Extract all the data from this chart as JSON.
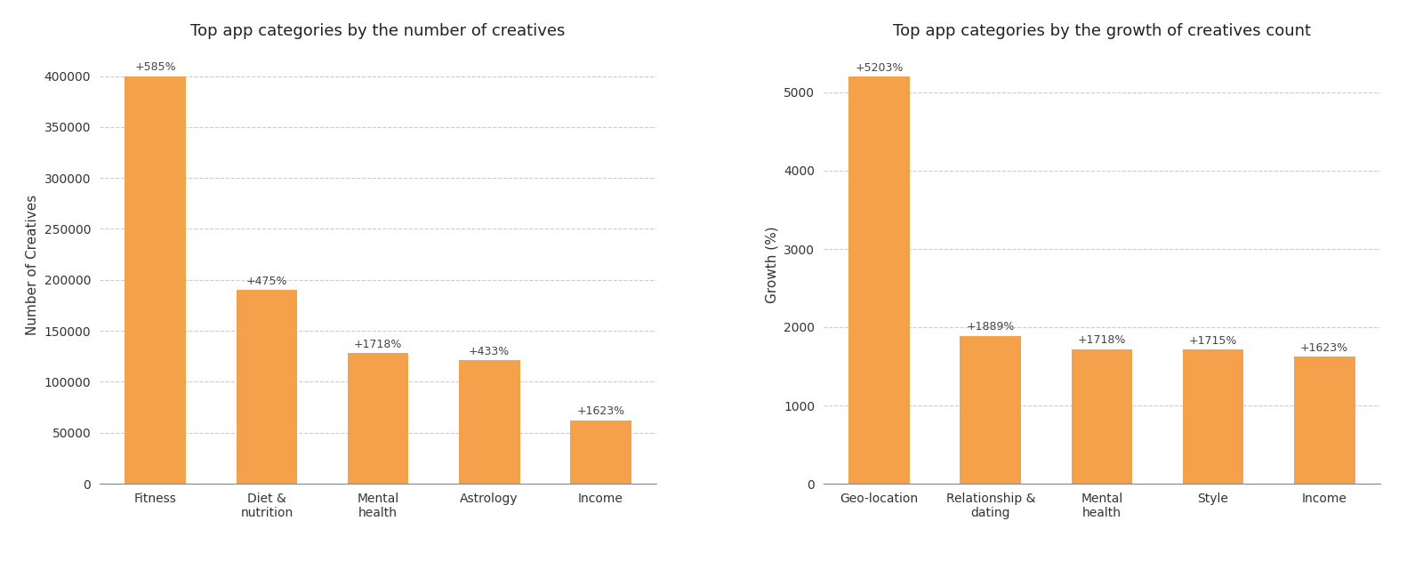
{
  "chart1": {
    "title": "Top app categories by the number of creatives",
    "categories": [
      "Fitness",
      "Diet &\nnutrition",
      "Mental\nhealth",
      "Astrology",
      "Income"
    ],
    "values": [
      400000,
      190000,
      128000,
      121000,
      62000
    ],
    "labels": [
      "+585%",
      "+475%",
      "+1718%",
      "+433%",
      "+1623%"
    ],
    "ylabel": "Number of Creatives",
    "ylim": [
      0,
      430000
    ],
    "yticks": [
      0,
      50000,
      100000,
      150000,
      200000,
      250000,
      300000,
      350000,
      400000
    ]
  },
  "chart2": {
    "title": "Top app categories by the growth of creatives count",
    "categories": [
      "Geo-location",
      "Relationship &\ndating",
      "Mental\nhealth",
      "Style",
      "Income"
    ],
    "values": [
      5203,
      1889,
      1718,
      1715,
      1623
    ],
    "labels": [
      "+5203%",
      "+1889%",
      "+1718%",
      "+1715%",
      "+1623%"
    ],
    "ylabel": "Growth (%)",
    "ylim": [
      0,
      5600
    ],
    "yticks": [
      0,
      1000,
      2000,
      3000,
      4000,
      5000
    ]
  },
  "bar_color": "#F5A04A",
  "bar_edge_color": "#F5A04A",
  "bg_color": "#FFFFFF",
  "grid_color": "#CCCCCC",
  "grid_linestyle": "--",
  "label_fontsize": 9,
  "title_fontsize": 13,
  "axis_label_fontsize": 11,
  "tick_fontsize": 10,
  "bar_width": 0.55
}
